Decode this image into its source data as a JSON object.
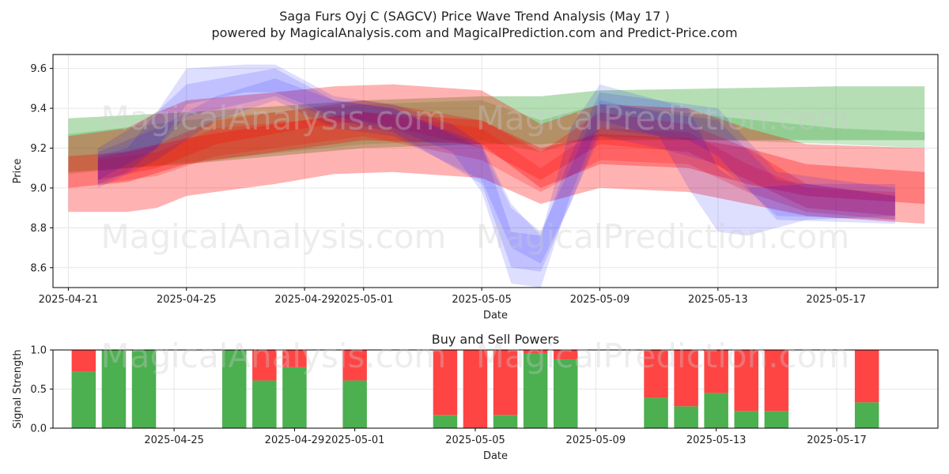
{
  "title_line1": "Saga Furs Oyj C (SAGCV) Price Wave Trend Analysis (May 17 )",
  "title_line2": "powered by MagicalAnalysis.com and MagicalPrediction.com and Predict-Price.com",
  "watermarks": [
    "MagicalAnalysis.com",
    "MagicalPrediction.com"
  ],
  "colors": {
    "green_band": "#2ca02c",
    "red_band": "#ff0000",
    "blue_band": "#0000ff",
    "buy_bar": "#4caf50",
    "sell_bar": "#ff4444"
  },
  "chart_data": [
    {
      "type": "area",
      "xlabel": "Date",
      "ylabel": "Price",
      "ylim": [
        8.5,
        9.67
      ],
      "yticks": [
        "8.6",
        "8.8",
        "9.0",
        "9.2",
        "9.4",
        "9.6"
      ],
      "xticks": [
        {
          "date": "2025-04-21",
          "label": "2025-04-21"
        },
        {
          "date": "2025-04-25",
          "label": "2025-04-25"
        },
        {
          "date": "2025-04-29",
          "label": "2025-04-29"
        },
        {
          "date": "2025-05-01",
          "label": "2025-05-01"
        },
        {
          "date": "2025-05-05",
          "label": "2025-05-05"
        },
        {
          "date": "2025-05-09",
          "label": "2025-05-09"
        },
        {
          "date": "2025-05-13",
          "label": "2025-05-13"
        },
        {
          "date": "2025-05-17",
          "label": "2025-05-17"
        }
      ],
      "grid": true,
      "bands": [
        {
          "color": "green",
          "opacity": 0.35,
          "x": [
            "2025-04-21",
            "2025-04-25",
            "2025-05-01",
            "2025-05-05",
            "2025-05-07",
            "2025-05-09",
            "2025-05-13",
            "2025-05-17",
            "2025-05-20"
          ],
          "upper": [
            9.35,
            9.38,
            9.44,
            9.46,
            9.46,
            9.49,
            9.5,
            9.51,
            9.51
          ],
          "lower": [
            9.08,
            9.12,
            9.2,
            9.22,
            9.22,
            9.24,
            9.24,
            9.24,
            9.24
          ]
        },
        {
          "color": "green",
          "opacity": 0.25,
          "x": [
            "2025-04-21",
            "2025-04-25",
            "2025-05-01",
            "2025-05-05",
            "2025-05-07",
            "2025-05-09",
            "2025-05-13",
            "2025-05-17",
            "2025-05-20"
          ],
          "upper": [
            9.27,
            9.34,
            9.42,
            9.44,
            9.34,
            9.42,
            9.36,
            9.3,
            9.28
          ],
          "lower": [
            9.07,
            9.13,
            9.22,
            9.24,
            9.18,
            9.26,
            9.24,
            9.22,
            9.2
          ]
        },
        {
          "color": "red",
          "opacity": 0.3,
          "x": [
            "2025-04-21",
            "2025-04-23",
            "2025-04-24",
            "2025-04-25",
            "2025-04-28",
            "2025-04-30",
            "2025-05-02",
            "2025-05-05",
            "2025-05-07",
            "2025-05-09",
            "2025-05-12",
            "2025-05-14",
            "2025-05-16",
            "2025-05-20"
          ],
          "upper": [
            9.26,
            9.3,
            9.38,
            9.44,
            9.48,
            9.51,
            9.52,
            9.49,
            9.32,
            9.42,
            9.4,
            9.3,
            9.22,
            9.2
          ],
          "lower": [
            8.88,
            8.88,
            8.9,
            8.96,
            9.02,
            9.07,
            9.08,
            9.05,
            8.92,
            9.0,
            8.98,
            8.92,
            8.86,
            8.82
          ]
        },
        {
          "color": "red",
          "opacity": 0.3,
          "x": [
            "2025-04-21",
            "2025-04-23",
            "2025-04-25",
            "2025-04-28",
            "2025-05-01",
            "2025-05-05",
            "2025-05-07",
            "2025-05-09",
            "2025-05-12",
            "2025-05-14",
            "2025-05-16",
            "2025-05-20"
          ],
          "upper": [
            9.16,
            9.18,
            9.25,
            9.32,
            9.38,
            9.34,
            9.2,
            9.27,
            9.25,
            9.2,
            9.12,
            9.08
          ],
          "lower": [
            9.0,
            9.03,
            9.12,
            9.18,
            9.24,
            9.22,
            9.0,
            9.12,
            9.1,
            9.02,
            8.96,
            8.92
          ]
        },
        {
          "color": "red",
          "opacity": 0.25,
          "x": [
            "2025-04-22",
            "2025-04-24",
            "2025-04-26",
            "2025-04-29",
            "2025-05-01",
            "2025-05-05",
            "2025-05-07",
            "2025-05-09",
            "2025-05-12",
            "2025-05-14",
            "2025-05-16",
            "2025-05-19"
          ],
          "upper": [
            9.15,
            9.22,
            9.34,
            9.4,
            9.44,
            9.34,
            9.18,
            9.38,
            9.32,
            9.2,
            9.02,
            8.96
          ],
          "lower": [
            9.04,
            9.1,
            9.22,
            9.3,
            9.34,
            9.2,
            9.04,
            9.22,
            9.18,
            9.04,
            8.9,
            8.86
          ]
        },
        {
          "color": "red",
          "opacity": 0.2,
          "x": [
            "2025-04-22",
            "2025-04-24",
            "2025-04-26",
            "2025-04-29",
            "2025-05-01",
            "2025-05-05",
            "2025-05-07",
            "2025-05-09",
            "2025-05-12",
            "2025-05-14",
            "2025-05-16",
            "2025-05-19"
          ],
          "upper": [
            9.14,
            9.18,
            9.3,
            9.34,
            9.38,
            9.3,
            9.1,
            9.3,
            9.28,
            9.12,
            9.0,
            8.98
          ],
          "lower": [
            9.02,
            9.06,
            9.16,
            9.22,
            9.26,
            9.14,
            8.98,
            9.14,
            9.12,
            8.98,
            8.88,
            8.84
          ]
        },
        {
          "color": "blue",
          "opacity": 0.13,
          "x": [
            "2025-04-22",
            "2025-04-23",
            "2025-04-24",
            "2025-04-25",
            "2025-04-27",
            "2025-04-28",
            "2025-04-30",
            "2025-05-02",
            "2025-05-04",
            "2025-05-05",
            "2025-05-06",
            "2025-05-07",
            "2025-05-08",
            "2025-05-09",
            "2025-05-11",
            "2025-05-12",
            "2025-05-13",
            "2025-05-14",
            "2025-05-16",
            "2025-05-19"
          ],
          "upper": [
            9.16,
            9.2,
            9.38,
            9.6,
            9.62,
            9.62,
            9.46,
            9.42,
            9.32,
            9.22,
            8.78,
            8.76,
            9.3,
            9.52,
            9.44,
            9.4,
            9.1,
            9.0,
            9.02,
            9.02
          ],
          "lower": [
            9.02,
            9.08,
            9.2,
            9.42,
            9.48,
            9.48,
            9.36,
            9.3,
            9.18,
            8.98,
            8.52,
            8.5,
            8.96,
            9.34,
            9.26,
            9.0,
            8.78,
            8.76,
            8.84,
            8.86
          ]
        },
        {
          "color": "blue",
          "opacity": 0.13,
          "x": [
            "2025-04-22",
            "2025-04-24",
            "2025-04-25",
            "2025-04-28",
            "2025-04-30",
            "2025-05-02",
            "2025-05-05",
            "2025-05-06",
            "2025-05-07",
            "2025-05-08",
            "2025-05-09",
            "2025-05-12",
            "2025-05-13",
            "2025-05-15",
            "2025-05-19"
          ],
          "upper": [
            9.2,
            9.38,
            9.52,
            9.6,
            9.44,
            9.4,
            9.22,
            8.92,
            8.76,
            9.16,
            9.48,
            9.42,
            9.4,
            9.08,
            9.0
          ],
          "lower": [
            9.04,
            9.2,
            9.36,
            9.46,
            9.34,
            9.28,
            9.02,
            8.6,
            8.58,
            8.92,
            9.3,
            9.24,
            9.16,
            8.84,
            8.82
          ]
        },
        {
          "color": "blue",
          "opacity": 0.12,
          "x": [
            "2025-04-22",
            "2025-04-24",
            "2025-04-26",
            "2025-04-28",
            "2025-04-30",
            "2025-05-02",
            "2025-05-05",
            "2025-05-06",
            "2025-05-07",
            "2025-05-08",
            "2025-05-09",
            "2025-05-11",
            "2025-05-13",
            "2025-05-15",
            "2025-05-19"
          ],
          "upper": [
            9.18,
            9.3,
            9.46,
            9.55,
            9.44,
            9.4,
            9.2,
            8.9,
            8.78,
            9.1,
            9.44,
            9.38,
            9.34,
            9.04,
            8.96
          ],
          "lower": [
            9.0,
            9.14,
            9.34,
            9.44,
            9.3,
            9.26,
            9.04,
            8.7,
            8.62,
            8.92,
            9.26,
            9.2,
            9.12,
            8.86,
            8.84
          ]
        }
      ]
    },
    {
      "type": "bar",
      "title": "Buy and Sell Powers",
      "xlabel": "Date",
      "ylabel": "Signal Strength",
      "ylim": [
        0,
        1.0
      ],
      "yticks": [
        "0.0",
        "0.5",
        "1.0"
      ],
      "xticks": [
        {
          "date": "2025-04-25",
          "label": "2025-04-25"
        },
        {
          "date": "2025-04-29",
          "label": "2025-04-29"
        },
        {
          "date": "2025-05-01",
          "label": "2025-05-01"
        },
        {
          "date": "2025-05-05",
          "label": "2025-05-05"
        },
        {
          "date": "2025-05-09",
          "label": "2025-05-09"
        },
        {
          "date": "2025-05-13",
          "label": "2025-05-13"
        },
        {
          "date": "2025-05-17",
          "label": "2025-05-17"
        }
      ],
      "grid": true,
      "x": [
        "2025-04-22",
        "2025-04-23",
        "2025-04-24",
        "2025-04-27",
        "2025-04-28",
        "2025-04-29",
        "2025-05-01",
        "2025-05-04",
        "2025-05-05",
        "2025-05-06",
        "2025-05-07",
        "2025-05-08",
        "2025-05-11",
        "2025-05-12",
        "2025-05-13",
        "2025-05-14",
        "2025-05-15",
        "2025-05-18"
      ],
      "series": [
        {
          "name": "buy",
          "values": [
            0.72,
            1.0,
            1.0,
            1.0,
            0.61,
            0.78,
            0.61,
            0.17,
            0.0,
            0.17,
            0.95,
            0.88,
            0.39,
            0.28,
            0.45,
            0.22,
            0.22,
            0.33
          ]
        },
        {
          "name": "sell",
          "values": [
            0.28,
            0.0,
            0.0,
            0.0,
            0.39,
            0.22,
            0.39,
            0.83,
            1.0,
            0.83,
            0.05,
            0.12,
            0.61,
            0.72,
            0.55,
            0.78,
            0.78,
            0.67
          ]
        }
      ]
    }
  ]
}
